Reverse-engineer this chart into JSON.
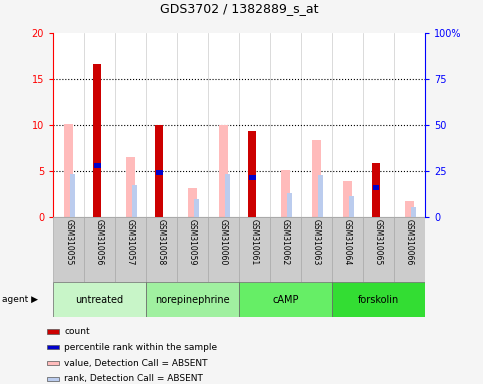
{
  "title": "GDS3702 / 1382889_s_at",
  "samples": [
    "GSM310055",
    "GSM310056",
    "GSM310057",
    "GSM310058",
    "GSM310059",
    "GSM310060",
    "GSM310061",
    "GSM310062",
    "GSM310063",
    "GSM310064",
    "GSM310065",
    "GSM310066"
  ],
  "groups": [
    {
      "label": "untreated",
      "color": "#c8f5c8",
      "indices": [
        0,
        1,
        2
      ]
    },
    {
      "label": "norepinephrine",
      "color": "#a0f0a0",
      "indices": [
        3,
        4,
        5
      ]
    },
    {
      "label": "cAMP",
      "color": "#66ee66",
      "indices": [
        6,
        7,
        8
      ]
    },
    {
      "label": "forskolin",
      "color": "#33dd33",
      "indices": [
        9,
        10,
        11
      ]
    }
  ],
  "red_bars": [
    0.0,
    16.6,
    0.0,
    10.0,
    0.0,
    0.0,
    9.3,
    0.0,
    0.0,
    0.0,
    5.9,
    0.0
  ],
  "blue_bars": [
    0.0,
    5.9,
    0.0,
    5.1,
    0.0,
    0.0,
    4.6,
    0.0,
    0.0,
    0.0,
    3.5,
    0.0
  ],
  "pink_bars": [
    10.1,
    0.0,
    6.5,
    0.0,
    3.1,
    10.0,
    0.0,
    5.1,
    8.4,
    3.9,
    0.0,
    1.7
  ],
  "lightblue_bars": [
    4.7,
    0.0,
    3.5,
    0.0,
    1.9,
    4.7,
    0.0,
    2.6,
    4.5,
    2.3,
    0.0,
    1.1
  ],
  "ylim_left": [
    0,
    20
  ],
  "ylim_right": [
    0,
    100
  ],
  "yticks_left": [
    0,
    5,
    10,
    15,
    20
  ],
  "yticks_right": [
    0,
    25,
    50,
    75,
    100
  ],
  "red_color": "#cc0000",
  "blue_color": "#0000cc",
  "pink_color": "#ffbbbb",
  "lightblue_color": "#bbccee",
  "bg_color": "#ffffff",
  "fig_bg": "#f5f5f5",
  "sample_box_color": "#cccccc",
  "sample_box_edge": "#aaaaaa",
  "legend_items": [
    {
      "color": "#cc0000",
      "label": "count"
    },
    {
      "color": "#0000cc",
      "label": "percentile rank within the sample"
    },
    {
      "color": "#ffbbbb",
      "label": "value, Detection Call = ABSENT"
    },
    {
      "color": "#bbccee",
      "label": "rank, Detection Call = ABSENT"
    }
  ]
}
